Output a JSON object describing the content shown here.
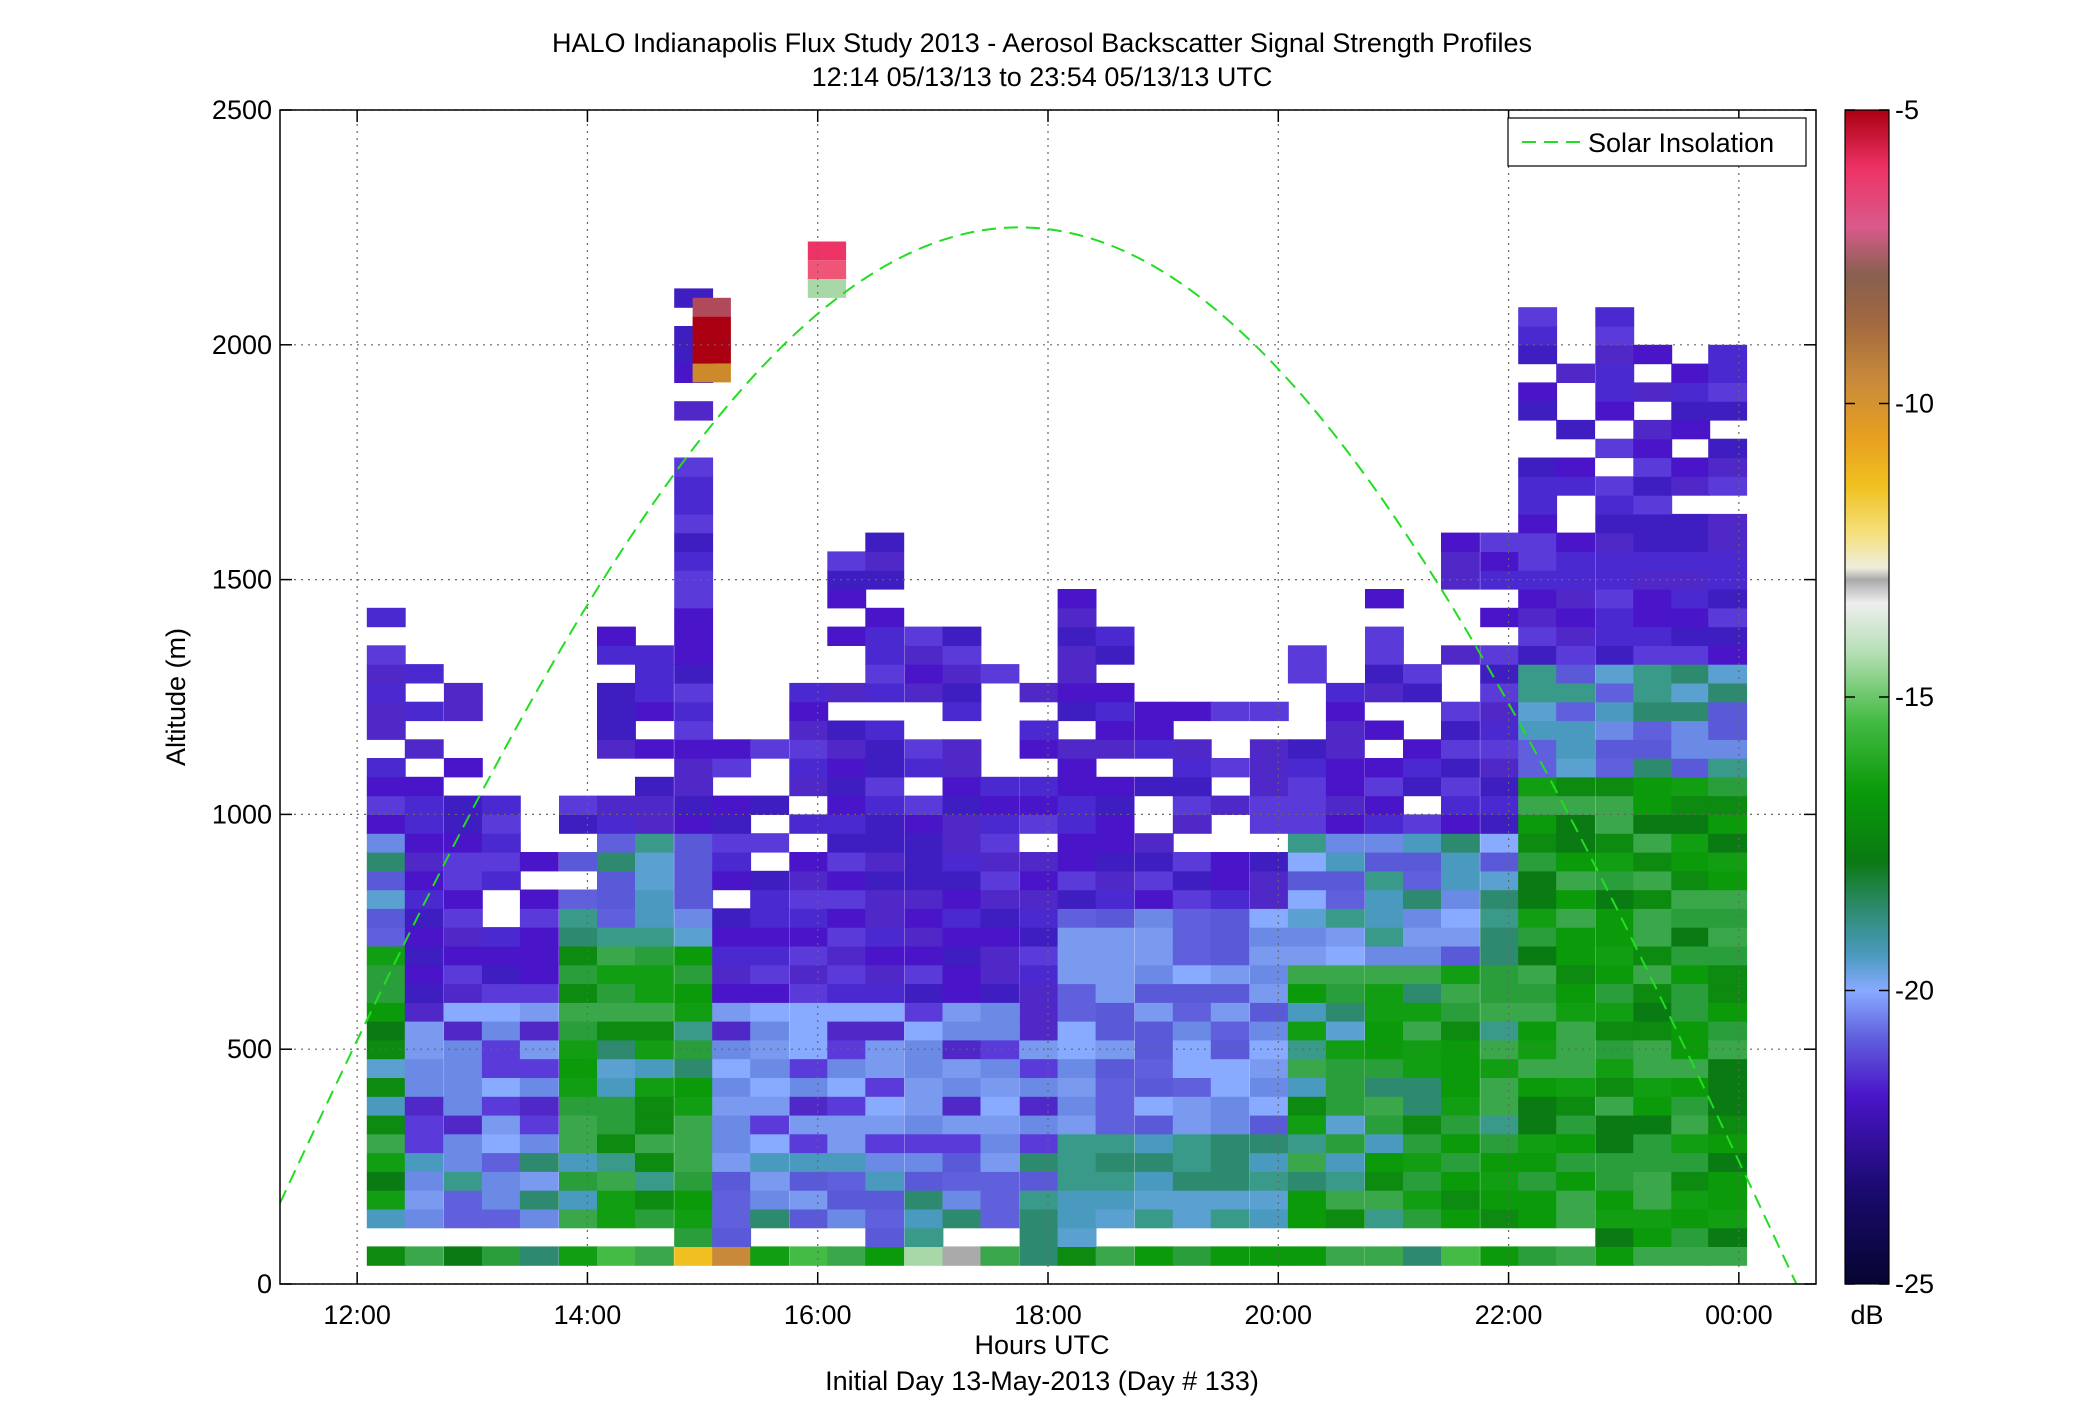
{
  "chart_data": {
    "type": "heatmap",
    "title": "HALO Indianapolis Flux Study 2013 - Aerosol Backscatter Signal Strength Profiles",
    "subtitle": "12:14 05/13/13 to 23:54 05/13/13  UTC",
    "xlabel": "Hours UTC",
    "xlabel2": "Initial Day 13-May-2013 (Day # 133)",
    "ylabel": "Altitude (m)",
    "x_domain_hours": [
      11.33,
      24.67
    ],
    "ylim": [
      0,
      2500
    ],
    "xticks": [
      12,
      14,
      16,
      18,
      20,
      22,
      24
    ],
    "xtick_labels": [
      "12:00",
      "14:00",
      "16:00",
      "18:00",
      "20:00",
      "22:00",
      "00:00"
    ],
    "yticks": [
      0,
      500,
      1000,
      1500,
      2000,
      2500
    ],
    "ytick_labels": [
      "0",
      "500",
      "1000",
      "1500",
      "2000",
      "2500"
    ],
    "grid": true,
    "legend": {
      "position": "top-right",
      "entries": [
        {
          "label": "Solar Insolation",
          "color": "#22dd22",
          "style": "dashed"
        }
      ]
    },
    "colorbar": {
      "label": "dB",
      "range": [
        -25,
        -5
      ],
      "ticks": [
        -25,
        -20,
        -15,
        -10,
        -5
      ],
      "tick_labels": [
        "-25",
        "-20",
        "-15",
        "-10",
        "-5"
      ]
    },
    "solar_insolation_curve": {
      "peak_hour": 17.75,
      "peak_altitude": 2250,
      "zero_hours": [
        11.0,
        24.5
      ]
    },
    "profiles": {
      "time_step_hours": 0.333,
      "altitude_bin_m": 40,
      "times": [
        12.25,
        12.58,
        12.92,
        13.25,
        13.58,
        13.92,
        14.25,
        14.58,
        14.92,
        15.25,
        15.58,
        15.92,
        16.25,
        16.58,
        16.92,
        17.25,
        17.58,
        17.92,
        18.25,
        18.58,
        18.92,
        19.25,
        19.58,
        19.92,
        20.25,
        20.58,
        20.92,
        21.25,
        21.58,
        21.92,
        22.25,
        22.58,
        22.92,
        23.25,
        23.58,
        23.9
      ],
      "top_altitudes": [
        1450,
        1300,
        1280,
        1120,
        1120,
        1080,
        1400,
        1400,
        2100,
        1170,
        1170,
        1290,
        1590,
        1590,
        1400,
        1450,
        1450,
        1300,
        1530,
        1450,
        1290,
        1290,
        1220,
        1220,
        1370,
        1360,
        1500,
        1380,
        1600,
        1690,
        2090,
        1940,
        2090,
        1990,
        1990,
        1990
      ]
    }
  }
}
